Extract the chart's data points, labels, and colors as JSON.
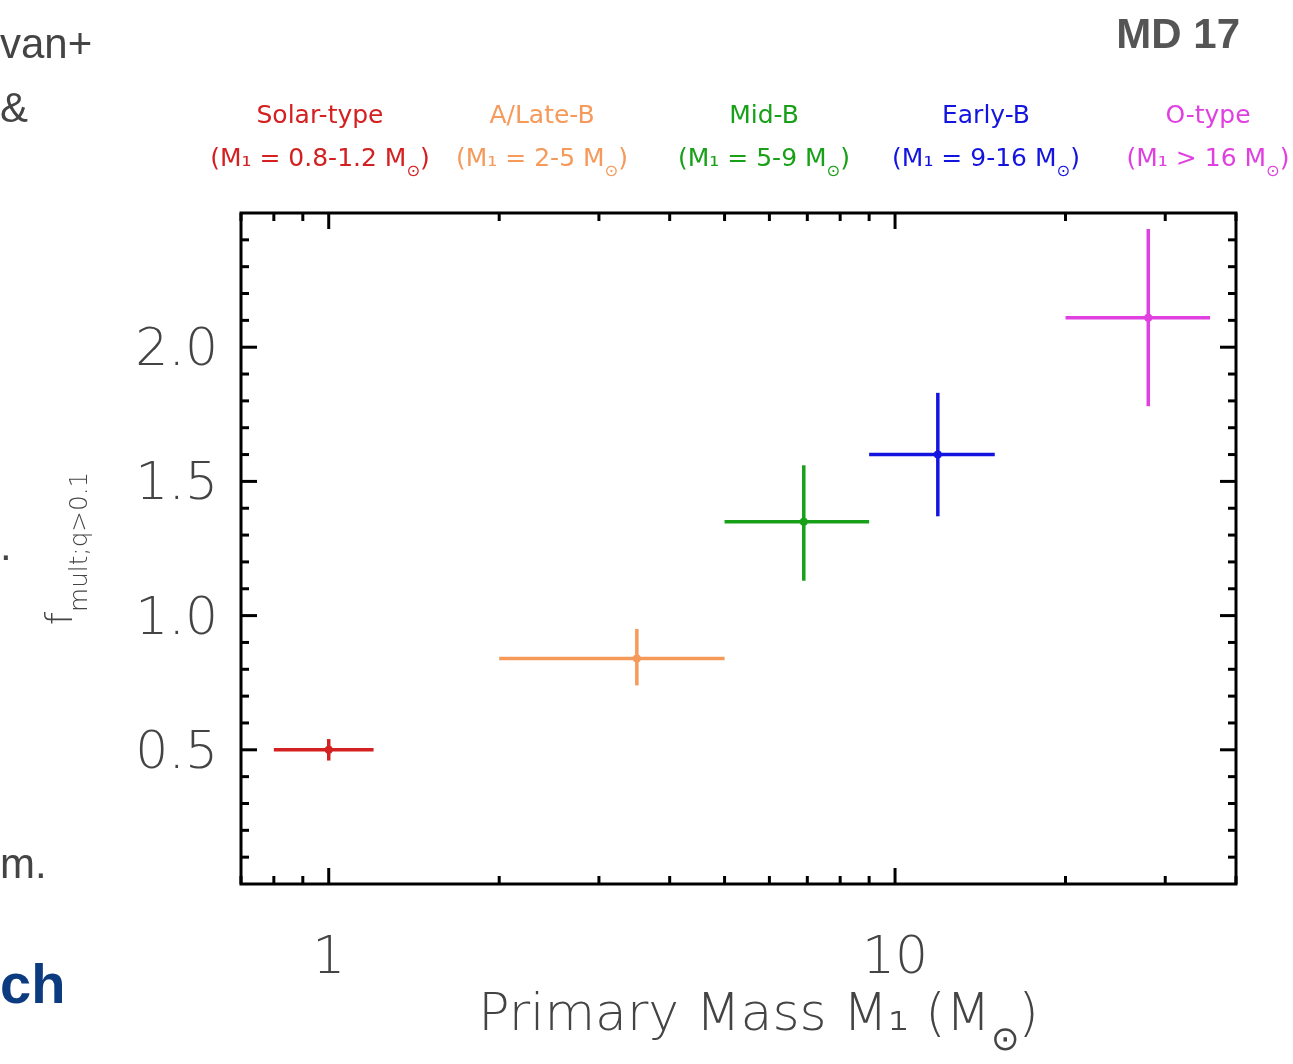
{
  "chart_data": {
    "type": "scatter",
    "xlabel": "Primary Mass M₁ (M$_{⊙}$)",
    "ylabel": "f$_{mult;q>0.1}$",
    "log": "x",
    "xlim": [
      0.7,
      40
    ],
    "xticks": [
      {
        "value": 0.7,
        "label": null
      },
      {
        "value": 0.8,
        "label": null
      },
      {
        "value": 0.9,
        "label": null
      },
      1,
      {
        "value": 2,
        "label": null
      },
      {
        "value": 3,
        "label": null
      },
      {
        "value": 4,
        "label": null
      },
      {
        "value": 5,
        "label": null
      },
      {
        "value": 6,
        "label": null
      },
      {
        "value": 7,
        "label": null
      },
      {
        "value": 8,
        "label": null
      },
      {
        "value": 9,
        "label": null
      },
      10,
      {
        "value": 20,
        "label": null
      },
      {
        "value": 30,
        "label": null
      },
      {
        "value": 40,
        "label": null
      }
    ],
    "ylim": [
      0,
      2.5
    ],
    "yticks": [
      {
        "value": 0.1,
        "label": null
      },
      {
        "value": 0.2,
        "label": null
      },
      {
        "value": 0.3,
        "label": null
      },
      {
        "value": 0.4,
        "label": null
      },
      {
        "value": 0.5,
        "label": "0.5"
      },
      {
        "value": 0.6,
        "label": null
      },
      {
        "value": 0.7,
        "label": null
      },
      {
        "value": 0.8,
        "label": null
      },
      {
        "value": 0.9,
        "label": null
      },
      {
        "value": 1.0,
        "label": "1.0"
      },
      {
        "value": 1.1,
        "label": null
      },
      {
        "value": 1.2,
        "label": null
      },
      {
        "value": 1.3,
        "label": null
      },
      {
        "value": 1.4,
        "label": null
      },
      {
        "value": 1.5,
        "label": "1.5"
      },
      {
        "value": 1.6,
        "label": null
      },
      {
        "value": 1.7,
        "label": null
      },
      {
        "value": 1.8,
        "label": null
      },
      {
        "value": 1.9,
        "label": null
      },
      {
        "value": 2.0,
        "label": "2.0"
      },
      {
        "value": 2.1,
        "label": null
      },
      {
        "value": 2.2,
        "label": null
      },
      {
        "value": 2.3,
        "label": null
      },
      {
        "value": 2.4,
        "label": null
      }
    ],
    "grid": false,
    "annotations": [
      "MD 17",
      "van+",
      "&",
      ".",
      "m.",
      "ch"
    ],
    "series": [
      {
        "name": "Solar-type\n(M₁ = 0.8-1.2 M$_{⊙}$)",
        "color": "#d42020",
        "x": [
          1.0
        ],
        "values": [
          0.5
        ],
        "xerrors": [
          [
            0.8,
            1.2
          ]
        ],
        "errors": [
          [
            0.46,
            0.54
          ]
        ]
      },
      {
        "name": "A/Late-B\n(M₁ = 2-5 M$_{⊙}$)",
        "color": "#f59a5a",
        "x": [
          3.5
        ],
        "values": [
          0.84
        ],
        "xerrors": [
          [
            2,
            5
          ]
        ],
        "errors": [
          [
            0.74,
            0.95
          ]
        ]
      },
      {
        "name": "Mid-B\n(M₁ = 5-9 M$_{⊙}$)",
        "color": "#18a018",
        "x": [
          6.9
        ],
        "values": [
          1.35
        ],
        "xerrors": [
          [
            5,
            9
          ]
        ],
        "errors": [
          [
            1.13,
            1.56
          ]
        ]
      },
      {
        "name": "Early-B\n(M₁ = 9-16 M$_{⊙}$)",
        "color": "#1414e0",
        "x": [
          11.9
        ],
        "values": [
          1.6
        ],
        "xerrors": [
          [
            9,
            15
          ]
        ],
        "errors": [
          [
            1.37,
            1.83
          ]
        ]
      },
      {
        "name": "O-type\n(M₁ > 16 M$_{⊙}$)",
        "color": "#e040e0",
        "x": [
          28
        ],
        "values": [
          2.11
        ],
        "xerrors": [
          [
            20,
            36
          ]
        ],
        "errors": [
          [
            1.78,
            2.44
          ]
        ]
      }
    ]
  }
}
